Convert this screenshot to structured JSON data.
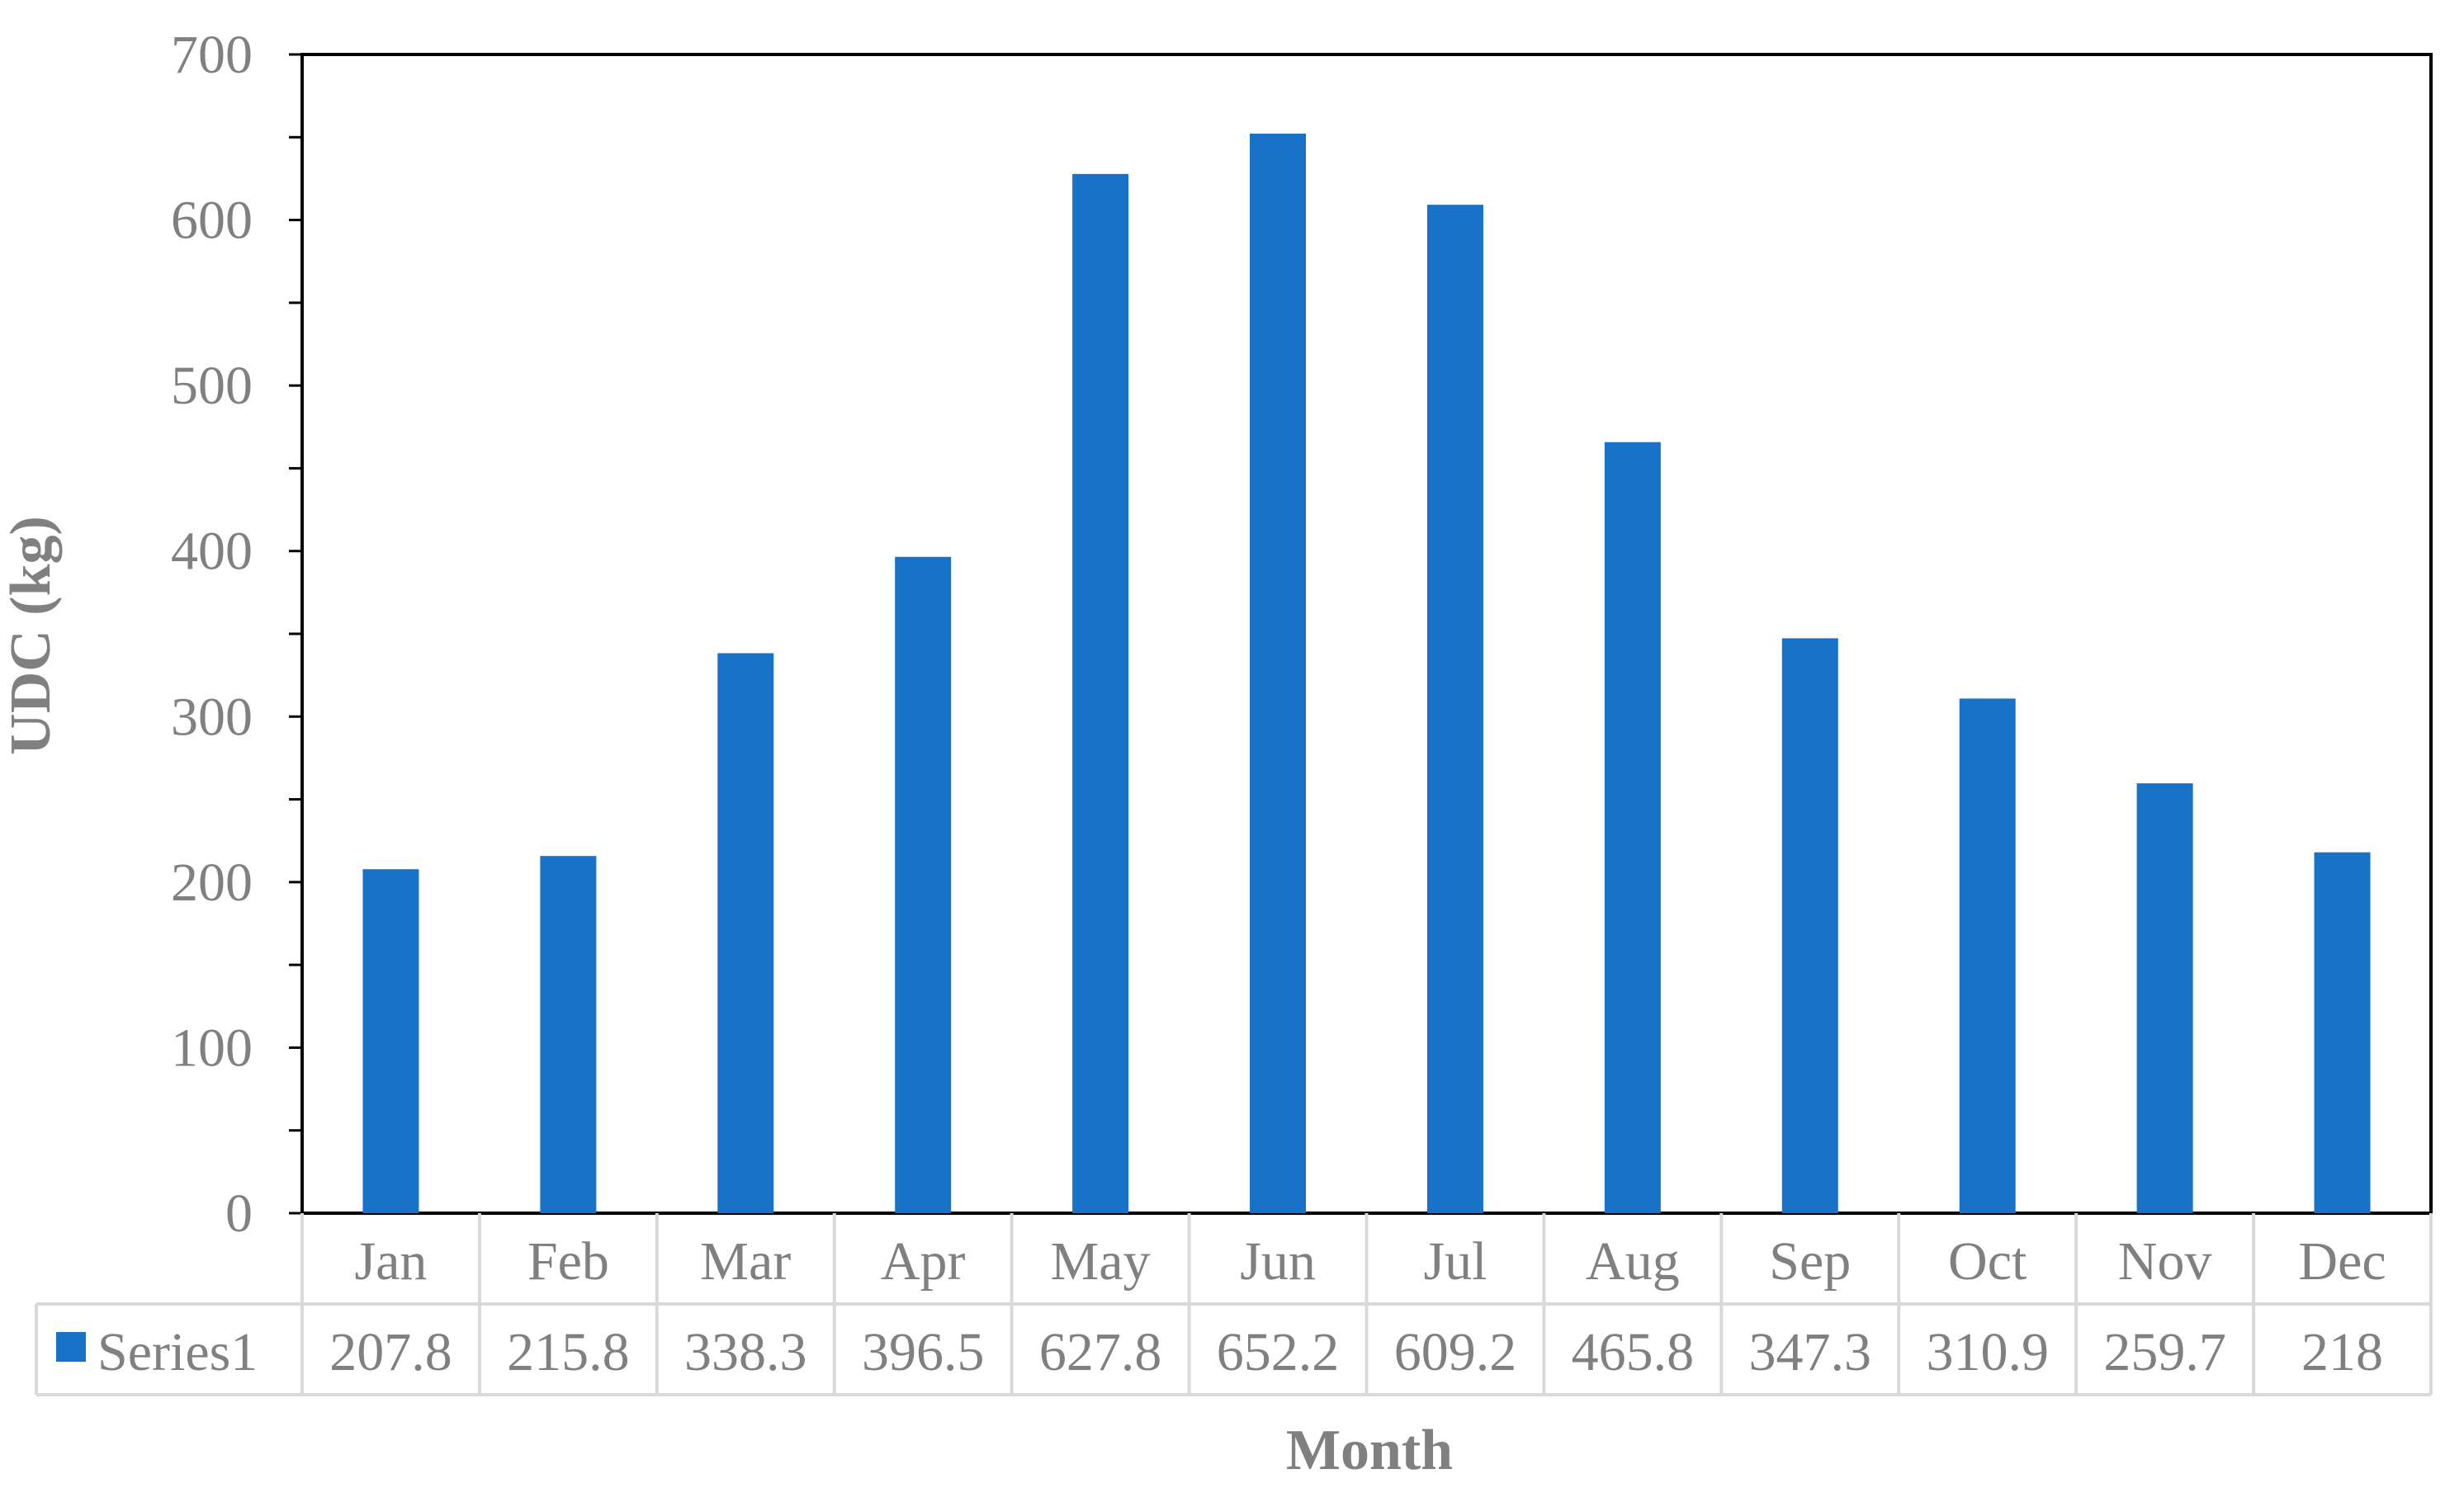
{
  "chart_data": {
    "type": "bar",
    "categories": [
      "Jan",
      "Feb",
      "Mar",
      "Apr",
      "May",
      "Jun",
      "Jul",
      "Aug",
      "Sep",
      "Oct",
      "Nov",
      "Dec"
    ],
    "series": [
      {
        "name": "Series1",
        "values": [
          207.8,
          215.8,
          338.3,
          396.5,
          627.8,
          652.2,
          609.2,
          465.8,
          347.3,
          310.9,
          259.7,
          218
        ],
        "color": "#1872C7"
      }
    ],
    "value_labels": [
      "207.8",
      "215.8",
      "338.3",
      "396.5",
      "627.8",
      "652.2",
      "609.2",
      "465.8",
      "347.3",
      "310.9",
      "259.7",
      "218"
    ],
    "title": "",
    "xlabel": "Month",
    "ylabel": "UDC (kg)",
    "ylim": [
      0,
      700
    ],
    "yticks": [
      0,
      100,
      200,
      300,
      400,
      500,
      600,
      700
    ],
    "ytick_labels": [
      "0",
      "100",
      "200",
      "300",
      "400",
      "500",
      "600",
      "700"
    ],
    "data_table": true,
    "legend": "in data table",
    "grid": false
  }
}
